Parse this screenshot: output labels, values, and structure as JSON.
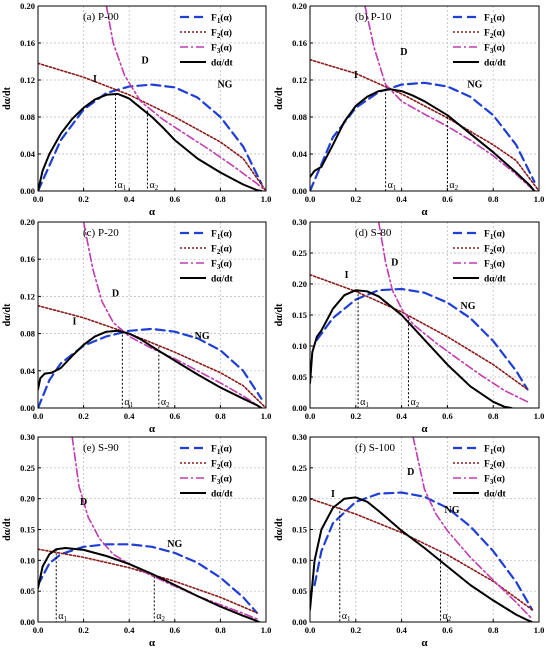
{
  "legend_entries": [
    {
      "base": "F",
      "sub": "1",
      "suffix": "(α)",
      "color": "#1f3fd4",
      "dash": "9,5",
      "width": 2.2
    },
    {
      "base": "F",
      "sub": "2",
      "suffix": "(α)",
      "color": "#8b1a1a",
      "dash": "2,2",
      "width": 1.6
    },
    {
      "base": "F",
      "sub": "3",
      "suffix": "(α)",
      "color": "#c23bb0",
      "dash": "8,3,2,3",
      "width": 1.6
    },
    {
      "base": "dα/dt",
      "sub": "",
      "suffix": "",
      "color": "#000000",
      "dash": "",
      "width": 2.0
    }
  ],
  "chart_data": [
    {
      "type": "line",
      "title": "(a) P-00",
      "xlabel": "α",
      "ylabel": "dα/dt",
      "xlim": [
        0,
        1
      ],
      "ylim": [
        0,
        0.2
      ],
      "xticks": [
        "0.0",
        "0.2",
        "0.4",
        "0.6",
        "0.8",
        "1.0"
      ],
      "yticks": [
        "0.00",
        "0.04",
        "0.08",
        "0.12",
        "0.16",
        "0.20"
      ],
      "grid": true,
      "legend": "top-right",
      "series": [
        {
          "name": "F1(α)",
          "x": [
            0,
            0.1,
            0.2,
            0.3,
            0.4,
            0.5,
            0.6,
            0.7,
            0.8,
            0.9,
            0.98
          ],
          "y": [
            0,
            0.055,
            0.088,
            0.106,
            0.113,
            0.115,
            0.112,
            0.101,
            0.08,
            0.048,
            0.008
          ]
        },
        {
          "name": "F2(α)",
          "x": [
            0,
            0.2,
            0.4,
            0.6,
            0.8,
            0.9,
            1.0
          ],
          "y": [
            0.138,
            0.123,
            0.104,
            0.08,
            0.053,
            0.035,
            0.0
          ]
        },
        {
          "name": "F3(α)",
          "x": [
            0.3,
            0.33,
            0.38,
            0.45,
            0.55,
            0.65,
            0.75,
            0.85,
            0.95,
            1.0
          ],
          "y": [
            0.2,
            0.16,
            0.125,
            0.097,
            0.077,
            0.061,
            0.045,
            0.028,
            0.01,
            0.0
          ]
        },
        {
          "name": "dα/dt",
          "x": [
            0,
            0.02,
            0.05,
            0.1,
            0.15,
            0.2,
            0.25,
            0.3,
            0.35,
            0.4,
            0.45,
            0.5,
            0.55,
            0.6,
            0.7,
            0.8,
            0.9,
            0.96,
            0.98
          ],
          "y": [
            0,
            0.022,
            0.04,
            0.062,
            0.078,
            0.09,
            0.099,
            0.104,
            0.105,
            0.1,
            0.09,
            0.08,
            0.068,
            0.055,
            0.035,
            0.02,
            0.007,
            0.001,
            0.0
          ]
        }
      ],
      "markers": [
        {
          "label": "α1",
          "x": 0.34,
          "y": 0.105
        },
        {
          "label": "α2",
          "x": 0.48,
          "y": 0.087
        }
      ],
      "annotations": [
        {
          "text": "I",
          "x": 0.25,
          "y": 0.118
        },
        {
          "text": "D",
          "x": 0.47,
          "y": 0.138
        },
        {
          "text": "NG",
          "x": 0.82,
          "y": 0.112
        }
      ]
    },
    {
      "type": "line",
      "title": "(b) P-10",
      "xlabel": "α",
      "ylabel": "dα/dt",
      "xlim": [
        0,
        1
      ],
      "ylim": [
        0,
        0.2
      ],
      "xticks": [
        "0.0",
        "0.2",
        "0.4",
        "0.6",
        "0.8",
        "1.0"
      ],
      "yticks": [
        "0.00",
        "0.04",
        "0.08",
        "0.12",
        "0.16",
        "0.20"
      ],
      "grid": true,
      "legend": "top-right",
      "series": [
        {
          "name": "F1(α)",
          "x": [
            0,
            0.1,
            0.2,
            0.3,
            0.4,
            0.5,
            0.6,
            0.7,
            0.8,
            0.9,
            0.98
          ],
          "y": [
            0,
            0.058,
            0.09,
            0.107,
            0.115,
            0.117,
            0.113,
            0.102,
            0.082,
            0.05,
            0.01
          ]
        },
        {
          "name": "F2(α)",
          "x": [
            0,
            0.2,
            0.4,
            0.6,
            0.8,
            0.9,
            1.0
          ],
          "y": [
            0.142,
            0.127,
            0.105,
            0.079,
            0.05,
            0.033,
            0.0
          ]
        },
        {
          "name": "F3(α)",
          "x": [
            0.24,
            0.28,
            0.33,
            0.4,
            0.5,
            0.6,
            0.7,
            0.8,
            0.9,
            0.98
          ],
          "y": [
            0.2,
            0.155,
            0.115,
            0.097,
            0.083,
            0.07,
            0.055,
            0.038,
            0.018,
            0.0
          ]
        },
        {
          "name": "dα/dt",
          "x": [
            0,
            0.02,
            0.05,
            0.1,
            0.15,
            0.2,
            0.25,
            0.3,
            0.35,
            0.4,
            0.45,
            0.5,
            0.6,
            0.7,
            0.8,
            0.9,
            0.96,
            0.98
          ],
          "y": [
            0.015,
            0.022,
            0.026,
            0.05,
            0.075,
            0.092,
            0.102,
            0.108,
            0.11,
            0.108,
            0.103,
            0.097,
            0.082,
            0.062,
            0.042,
            0.02,
            0.006,
            0.0
          ]
        }
      ],
      "markers": [
        {
          "label": "α1",
          "x": 0.33,
          "y": 0.11
        },
        {
          "label": "α2",
          "x": 0.6,
          "y": 0.08
        }
      ],
      "annotations": [
        {
          "text": "I",
          "x": 0.2,
          "y": 0.122
        },
        {
          "text": "D",
          "x": 0.41,
          "y": 0.147
        },
        {
          "text": "NG",
          "x": 0.72,
          "y": 0.112
        }
      ]
    },
    {
      "type": "line",
      "title": "(c) P-20",
      "xlabel": "α",
      "ylabel": "dα/dt",
      "xlim": [
        0,
        1
      ],
      "ylim": [
        0,
        0.2
      ],
      "xticks": [
        "0.0",
        "0.2",
        "0.4",
        "0.6",
        "0.8",
        "1.0"
      ],
      "yticks": [
        "0.00",
        "0.04",
        "0.08",
        "0.12",
        "0.16",
        "0.20"
      ],
      "grid": true,
      "legend": "top-right",
      "series": [
        {
          "name": "F1(α)",
          "x": [
            0,
            0.05,
            0.1,
            0.2,
            0.3,
            0.4,
            0.5,
            0.6,
            0.7,
            0.8,
            0.9,
            0.98
          ],
          "y": [
            0,
            0.03,
            0.048,
            0.067,
            0.077,
            0.083,
            0.085,
            0.082,
            0.075,
            0.062,
            0.04,
            0.01
          ]
        },
        {
          "name": "F2(α)",
          "x": [
            0,
            0.2,
            0.4,
            0.6,
            0.8,
            0.9,
            1.0
          ],
          "y": [
            0.11,
            0.097,
            0.08,
            0.06,
            0.038,
            0.024,
            0.0
          ]
        },
        {
          "name": "F3(α)",
          "x": [
            0.2,
            0.24,
            0.28,
            0.33,
            0.4,
            0.5,
            0.6,
            0.7,
            0.8,
            0.9,
            0.98
          ],
          "y": [
            0.2,
            0.15,
            0.115,
            0.092,
            0.077,
            0.064,
            0.053,
            0.04,
            0.027,
            0.013,
            0.0
          ]
        },
        {
          "name": "dα/dt",
          "x": [
            0,
            0.01,
            0.03,
            0.06,
            0.1,
            0.15,
            0.2,
            0.25,
            0.3,
            0.35,
            0.4,
            0.45,
            0.5,
            0.6,
            0.7,
            0.8,
            0.9,
            0.96,
            0.98
          ],
          "y": [
            0.02,
            0.032,
            0.037,
            0.038,
            0.043,
            0.056,
            0.068,
            0.077,
            0.082,
            0.083,
            0.08,
            0.074,
            0.066,
            0.051,
            0.036,
            0.022,
            0.01,
            0.003,
            0.0
          ]
        }
      ],
      "markers": [
        {
          "label": "α1",
          "x": 0.37,
          "y": 0.083
        },
        {
          "label": "α2",
          "x": 0.53,
          "y": 0.066
        }
      ],
      "annotations": [
        {
          "text": "I",
          "x": 0.16,
          "y": 0.09
        },
        {
          "text": "D",
          "x": 0.34,
          "y": 0.12
        },
        {
          "text": "NG",
          "x": 0.72,
          "y": 0.074
        }
      ]
    },
    {
      "type": "line",
      "title": "(d) S-80",
      "xlabel": "α",
      "ylabel": "dα/dt",
      "xlim": [
        0,
        1
      ],
      "ylim": [
        0,
        0.3
      ],
      "xticks": [
        "0.0",
        "0.2",
        "0.4",
        "0.6",
        "0.8",
        "1.0"
      ],
      "yticks": [
        "0.00",
        "0.05",
        "0.10",
        "0.15",
        "0.20",
        "0.25",
        "0.30"
      ],
      "grid": true,
      "legend": "top-right",
      "series": [
        {
          "name": "F1(α)",
          "x": [
            0.03,
            0.1,
            0.2,
            0.3,
            0.4,
            0.5,
            0.6,
            0.7,
            0.8,
            0.9,
            0.95
          ],
          "y": [
            0.11,
            0.145,
            0.175,
            0.19,
            0.192,
            0.186,
            0.17,
            0.145,
            0.108,
            0.06,
            0.03
          ]
        },
        {
          "name": "F2(α)",
          "x": [
            0,
            0.2,
            0.4,
            0.6,
            0.8,
            0.95
          ],
          "y": [
            0.215,
            0.188,
            0.155,
            0.115,
            0.07,
            0.03
          ]
        },
        {
          "name": "F3(α)",
          "x": [
            0.3,
            0.33,
            0.36,
            0.4,
            0.45,
            0.55,
            0.65,
            0.75,
            0.85,
            0.95
          ],
          "y": [
            0.3,
            0.235,
            0.19,
            0.16,
            0.135,
            0.105,
            0.078,
            0.052,
            0.028,
            0.01
          ]
        },
        {
          "name": "dα/dt",
          "x": [
            0,
            0.01,
            0.03,
            0.05,
            0.1,
            0.15,
            0.2,
            0.25,
            0.3,
            0.35,
            0.4,
            0.45,
            0.5,
            0.6,
            0.7,
            0.8,
            0.85,
            0.88
          ],
          "y": [
            0.04,
            0.09,
            0.115,
            0.125,
            0.16,
            0.182,
            0.19,
            0.188,
            0.18,
            0.165,
            0.15,
            0.13,
            0.11,
            0.07,
            0.035,
            0.01,
            0.002,
            0.0
          ]
        }
      ],
      "markers": [
        {
          "label": "α1",
          "x": 0.21,
          "y": 0.19
        },
        {
          "label": "α2",
          "x": 0.43,
          "y": 0.148
        }
      ],
      "annotations": [
        {
          "text": "I",
          "x": 0.16,
          "y": 0.21
        },
        {
          "text": "D",
          "x": 0.37,
          "y": 0.23
        },
        {
          "text": "NG",
          "x": 0.69,
          "y": 0.16
        }
      ]
    },
    {
      "type": "line",
      "title": "(e) S-90",
      "xlabel": "α",
      "ylabel": "dα/dt",
      "xlim": [
        0,
        1
      ],
      "ylim": [
        0,
        0.3
      ],
      "xticks": [
        "0.0",
        "0.2",
        "0.4",
        "0.6",
        "0.8",
        "1.0"
      ],
      "yticks": [
        "0.00",
        "0.05",
        "0.10",
        "0.15",
        "0.20",
        "0.25",
        "0.30"
      ],
      "grid": true,
      "legend": "top-right",
      "series": [
        {
          "name": "F1(α)",
          "x": [
            0,
            0.05,
            0.1,
            0.2,
            0.3,
            0.4,
            0.5,
            0.6,
            0.7,
            0.8,
            0.9,
            0.96
          ],
          "y": [
            0.06,
            0.095,
            0.11,
            0.122,
            0.126,
            0.126,
            0.122,
            0.112,
            0.096,
            0.072,
            0.04,
            0.015
          ]
        },
        {
          "name": "F2(α)",
          "x": [
            0,
            0.2,
            0.4,
            0.6,
            0.8,
            0.96
          ],
          "y": [
            0.118,
            0.105,
            0.088,
            0.066,
            0.04,
            0.015
          ]
        },
        {
          "name": "F3(α)",
          "x": [
            0.15,
            0.18,
            0.22,
            0.27,
            0.33,
            0.4,
            0.5,
            0.6,
            0.7,
            0.8,
            0.9,
            0.96
          ],
          "y": [
            0.3,
            0.22,
            0.17,
            0.135,
            0.11,
            0.094,
            0.075,
            0.058,
            0.042,
            0.028,
            0.014,
            0.005
          ]
        },
        {
          "name": "dα/dt",
          "x": [
            0,
            0.02,
            0.05,
            0.08,
            0.12,
            0.2,
            0.3,
            0.4,
            0.5,
            0.6,
            0.7,
            0.8,
            0.9,
            0.95,
            0.97
          ],
          "y": [
            0.055,
            0.09,
            0.11,
            0.118,
            0.12,
            0.117,
            0.107,
            0.094,
            0.078,
            0.06,
            0.042,
            0.025,
            0.01,
            0.003,
            0.0
          ]
        }
      ],
      "markers": [
        {
          "label": "α1",
          "x": 0.08,
          "y": 0.118
        },
        {
          "label": "α2",
          "x": 0.51,
          "y": 0.074
        }
      ],
      "annotations": [
        {
          "text": "D",
          "x": 0.2,
          "y": 0.19
        },
        {
          "text": "NG",
          "x": 0.6,
          "y": 0.122
        }
      ]
    },
    {
      "type": "line",
      "title": "(f) S-100",
      "xlabel": "α",
      "ylabel": "dα/dt",
      "xlim": [
        0,
        1
      ],
      "ylim": [
        0,
        0.3
      ],
      "xticks": [
        "0.0",
        "0.2",
        "0.4",
        "0.6",
        "0.8",
        "1.0"
      ],
      "yticks": [
        "0.00",
        "0.05",
        "0.10",
        "0.15",
        "0.20",
        "0.25",
        "0.30"
      ],
      "grid": true,
      "legend": "top-right",
      "series": [
        {
          "name": "F1(α)",
          "x": [
            0.02,
            0.05,
            0.1,
            0.2,
            0.3,
            0.4,
            0.5,
            0.6,
            0.7,
            0.8,
            0.9,
            0.97
          ],
          "y": [
            0.06,
            0.115,
            0.16,
            0.195,
            0.208,
            0.21,
            0.203,
            0.185,
            0.155,
            0.115,
            0.065,
            0.02
          ]
        },
        {
          "name": "F2(α)",
          "x": [
            0,
            0.2,
            0.4,
            0.6,
            0.8,
            0.97
          ],
          "y": [
            0.2,
            0.175,
            0.145,
            0.109,
            0.066,
            0.02
          ]
        },
        {
          "name": "F3(α)",
          "x": [
            0.45,
            0.5,
            0.55,
            0.6,
            0.7,
            0.8,
            0.9,
            0.97
          ],
          "y": [
            0.3,
            0.215,
            0.175,
            0.148,
            0.105,
            0.068,
            0.032,
            0.005
          ]
        },
        {
          "name": "dα/dt",
          "x": [
            0,
            0.02,
            0.05,
            0.1,
            0.15,
            0.2,
            0.25,
            0.3,
            0.4,
            0.5,
            0.6,
            0.7,
            0.8,
            0.9,
            0.95,
            0.97
          ],
          "y": [
            0.02,
            0.1,
            0.15,
            0.185,
            0.2,
            0.202,
            0.195,
            0.18,
            0.148,
            0.12,
            0.09,
            0.06,
            0.035,
            0.012,
            0.003,
            0.0
          ]
        }
      ],
      "markers": [
        {
          "label": "α1",
          "x": 0.13,
          "y": 0.186
        },
        {
          "label": "α2",
          "x": 0.57,
          "y": 0.116
        }
      ],
      "annotations": [
        {
          "text": "I",
          "x": 0.1,
          "y": 0.203
        },
        {
          "text": "D",
          "x": 0.44,
          "y": 0.238
        },
        {
          "text": "NG",
          "x": 0.62,
          "y": 0.177
        }
      ]
    }
  ]
}
